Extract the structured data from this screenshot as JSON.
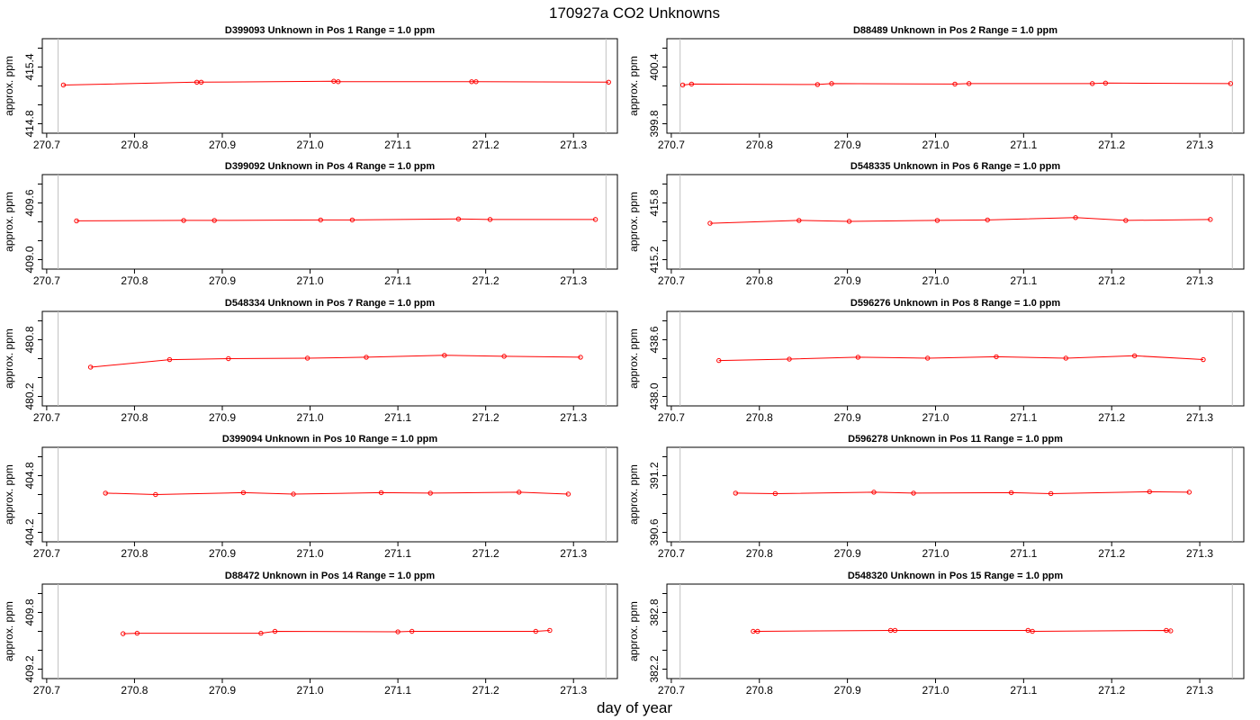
{
  "figure": {
    "title": "170927a  CO2 Unknowns",
    "xlabel": "day of year",
    "colors": {
      "series": "#ff0000",
      "axes": "#000000",
      "vline": "#c0c0c0"
    }
  },
  "chart_data": [
    {
      "type": "line",
      "title": "D399093    Unknown in Pos 1         Range = 1.0 ppm",
      "xlabel": "day of year",
      "ylabel": "approx. ppm",
      "xlim": [
        270.695,
        271.35
      ],
      "xticks": [
        "270.7",
        "270.8",
        "270.9",
        "271.0",
        "271.1",
        "271.2",
        "271.3"
      ],
      "ylim": [
        414.7,
        415.7
      ],
      "yticks": [
        "414.8",
        "415.4"
      ],
      "vlines": [
        270.713,
        271.337
      ],
      "x": [
        270.719,
        270.871,
        270.876,
        271.027,
        271.032,
        271.184,
        271.189,
        271.34
      ],
      "values": [
        415.21,
        415.24,
        415.24,
        415.25,
        415.245,
        415.245,
        415.245,
        415.24
      ]
    },
    {
      "type": "line",
      "title": "D88489    Unknown in Pos 2         Range = 1.0 ppm",
      "xlabel": "day of year",
      "ylabel": "approx. ppm",
      "xlim": [
        270.695,
        271.35
      ],
      "xticks": [
        "270.7",
        "270.8",
        "270.9",
        "271.0",
        "271.1",
        "271.2",
        "271.3"
      ],
      "ylim": [
        399.7,
        400.7
      ],
      "yticks": [
        "399.8",
        "400.4"
      ],
      "vlines": [
        270.71,
        271.337
      ],
      "x": [
        270.713,
        270.723,
        270.866,
        270.882,
        271.022,
        271.038,
        271.178,
        271.193,
        271.335
      ],
      "values": [
        400.21,
        400.22,
        400.215,
        400.225,
        400.22,
        400.225,
        400.225,
        400.23,
        400.225
      ]
    },
    {
      "type": "line",
      "title": "D399092    Unknown in Pos 4         Range = 1.0 ppm",
      "xlabel": "day of year",
      "ylabel": "approx. ppm",
      "xlim": [
        270.695,
        271.35
      ],
      "xticks": [
        "270.7",
        "270.8",
        "270.9",
        "271.0",
        "271.1",
        "271.2",
        "271.3"
      ],
      "ylim": [
        408.9,
        409.9
      ],
      "yticks": [
        "409.0",
        "409.6"
      ],
      "vlines": [
        270.713,
        271.337
      ],
      "x": [
        270.734,
        270.856,
        270.891,
        271.012,
        271.048,
        271.169,
        271.205,
        271.325
      ],
      "values": [
        409.41,
        409.415,
        409.415,
        409.42,
        409.42,
        409.43,
        409.425,
        409.425
      ]
    },
    {
      "type": "line",
      "title": "D548335    Unknown in Pos 6         Range = 1.0 ppm",
      "xlabel": "day of year",
      "ylabel": "approx. ppm",
      "xlim": [
        270.695,
        271.35
      ],
      "xticks": [
        "270.7",
        "270.8",
        "270.9",
        "271.0",
        "271.1",
        "271.2",
        "271.3"
      ],
      "ylim": [
        415.1,
        416.1
      ],
      "yticks": [
        "415.2",
        "415.8"
      ],
      "vlines": [
        270.71,
        271.337
      ],
      "x": [
        270.744,
        270.845,
        270.902,
        271.002,
        271.059,
        271.159,
        271.216,
        271.312
      ],
      "values": [
        415.585,
        415.615,
        415.605,
        415.615,
        415.62,
        415.645,
        415.615,
        415.625
      ]
    },
    {
      "type": "line",
      "title": "D548334    Unknown in Pos 7         Range = 1.0 ppm",
      "xlabel": "day of year",
      "ylabel": "approx. ppm",
      "xlim": [
        270.695,
        271.35
      ],
      "xticks": [
        "270.7",
        "270.8",
        "270.9",
        "271.0",
        "271.1",
        "271.2",
        "271.3"
      ],
      "ylim": [
        480.1,
        481.1
      ],
      "yticks": [
        "480.2",
        "480.8"
      ],
      "vlines": [
        270.713,
        271.337
      ],
      "x": [
        270.75,
        270.84,
        270.907,
        270.997,
        271.064,
        271.153,
        271.221,
        271.308
      ],
      "values": [
        480.51,
        480.59,
        480.6,
        480.605,
        480.615,
        480.635,
        480.625,
        480.615
      ]
    },
    {
      "type": "line",
      "title": "D596276    Unknown in Pos 8         Range = 1.0 ppm",
      "xlabel": "day of year",
      "ylabel": "approx. ppm",
      "xlim": [
        270.695,
        271.35
      ],
      "xticks": [
        "270.7",
        "270.8",
        "270.9",
        "271.0",
        "271.1",
        "271.2",
        "271.3"
      ],
      "ylim": [
        437.9,
        438.9
      ],
      "yticks": [
        "438.0",
        "438.6"
      ],
      "vlines": [
        270.71,
        271.337
      ],
      "x": [
        270.754,
        270.834,
        270.912,
        270.991,
        271.069,
        271.148,
        271.226,
        271.304
      ],
      "values": [
        438.38,
        438.395,
        438.415,
        438.405,
        438.42,
        438.405,
        438.43,
        438.39
      ]
    },
    {
      "type": "line",
      "title": "D399094    Unknown in Pos 10         Range = 1.0 ppm",
      "xlabel": "day of year",
      "ylabel": "approx. ppm",
      "xlim": [
        270.695,
        271.35
      ],
      "xticks": [
        "270.7",
        "270.8",
        "270.9",
        "271.0",
        "271.1",
        "271.2",
        "271.3"
      ],
      "ylim": [
        404.1,
        405.1
      ],
      "yticks": [
        "404.2",
        "404.8"
      ],
      "vlines": [
        270.713,
        271.337
      ],
      "x": [
        270.767,
        270.824,
        270.924,
        270.981,
        271.081,
        271.137,
        271.238,
        271.294
      ],
      "values": [
        404.615,
        404.6,
        404.62,
        404.605,
        404.62,
        404.615,
        404.625,
        404.605
      ]
    },
    {
      "type": "line",
      "title": "D596278    Unknown in Pos 11         Range = 1.0 ppm",
      "xlabel": "day of year",
      "ylabel": "approx. ppm",
      "xlim": [
        270.695,
        271.35
      ],
      "xticks": [
        "270.7",
        "270.8",
        "270.9",
        "271.0",
        "271.1",
        "271.2",
        "271.3"
      ],
      "ylim": [
        390.5,
        391.5
      ],
      "yticks": [
        "390.6",
        "391.2"
      ],
      "vlines": [
        270.71,
        271.337
      ],
      "x": [
        270.773,
        270.818,
        270.93,
        270.975,
        271.086,
        271.131,
        271.243,
        271.288
      ],
      "values": [
        391.015,
        391.01,
        391.025,
        391.015,
        391.02,
        391.01,
        391.03,
        391.025
      ]
    },
    {
      "type": "line",
      "title": "D88472    Unknown in Pos 14         Range = 1.0 ppm",
      "xlabel": "day of year",
      "ylabel": "approx. ppm",
      "xlim": [
        270.695,
        271.35
      ],
      "xticks": [
        "270.7",
        "270.8",
        "270.9",
        "271.0",
        "271.1",
        "271.2",
        "271.3"
      ],
      "ylim": [
        409.1,
        410.1
      ],
      "yticks": [
        "409.2",
        "409.8"
      ],
      "vlines": [
        270.713,
        271.337
      ],
      "x": [
        270.787,
        270.803,
        270.944,
        270.96,
        271.1,
        271.116,
        271.257,
        271.273
      ],
      "values": [
        409.575,
        409.58,
        409.58,
        409.6,
        409.595,
        409.6,
        409.6,
        409.61
      ]
    },
    {
      "type": "line",
      "title": "D548320    Unknown in Pos 15         Range = 1.0 ppm",
      "xlabel": "day of year",
      "ylabel": "approx. ppm",
      "xlim": [
        270.695,
        271.35
      ],
      "xticks": [
        "270.7",
        "270.8",
        "270.9",
        "271.0",
        "271.1",
        "271.2",
        "271.3"
      ],
      "ylim": [
        382.1,
        383.1
      ],
      "yticks": [
        "382.2",
        "382.8"
      ],
      "vlines": [
        270.71,
        271.337
      ],
      "x": [
        270.793,
        270.798,
        270.949,
        270.954,
        271.105,
        271.11,
        271.262,
        271.267
      ],
      "values": [
        382.6,
        382.6,
        382.61,
        382.61,
        382.61,
        382.6,
        382.61,
        382.605
      ]
    }
  ]
}
